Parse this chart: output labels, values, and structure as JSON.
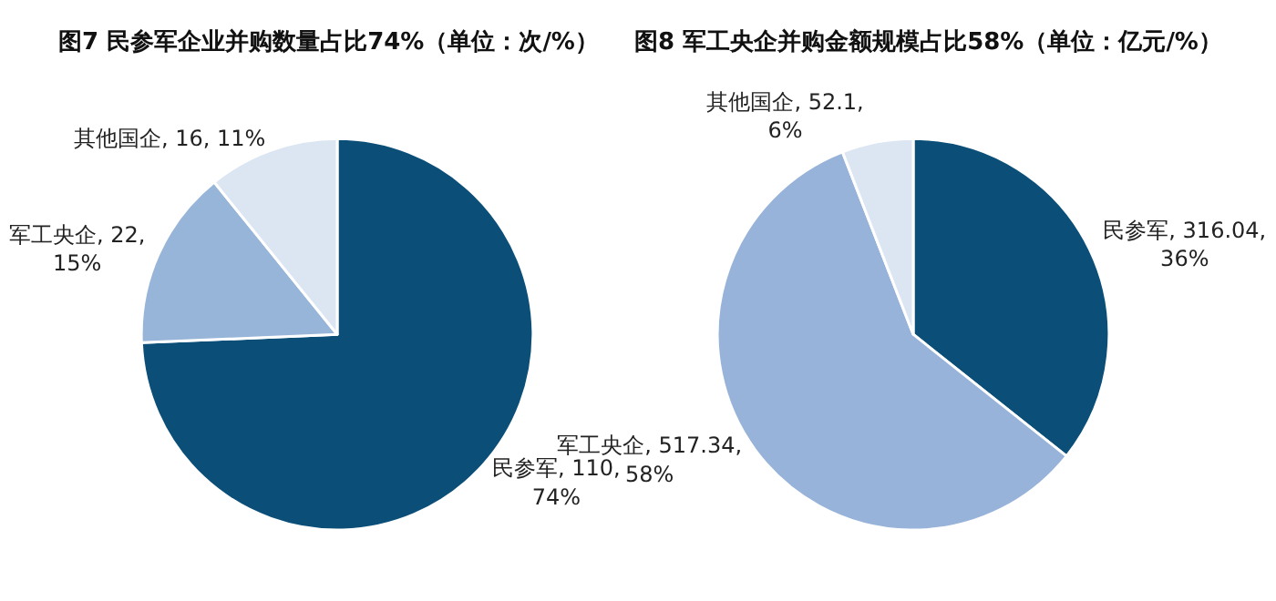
{
  "chart_data": [
    {
      "type": "pie",
      "title": "图7 民参军企业并购数量占比74%（单位：次/%）",
      "categories": [
        "民参军",
        "军工央企",
        "其他国企"
      ],
      "values": [
        110,
        22,
        16
      ],
      "value_labels": [
        "110, 74%",
        "22, 15%",
        "16, 11%"
      ],
      "colors": [
        "#0b4f79",
        "#97b5d8",
        "#dce6f2"
      ]
    },
    {
      "type": "pie",
      "title": "图8 军工央企并购金额规模占比58%（单位：亿元/%）",
      "categories": [
        "民参军",
        "军工央企",
        "其他国企"
      ],
      "values": [
        316.04,
        517.34,
        52.1
      ],
      "value_labels": [
        "316.04, 36%",
        "517.34, 58%",
        "52.1, 6%"
      ],
      "colors": [
        "#0b4f79",
        "#97b3d9",
        "#dce6f2"
      ]
    }
  ]
}
